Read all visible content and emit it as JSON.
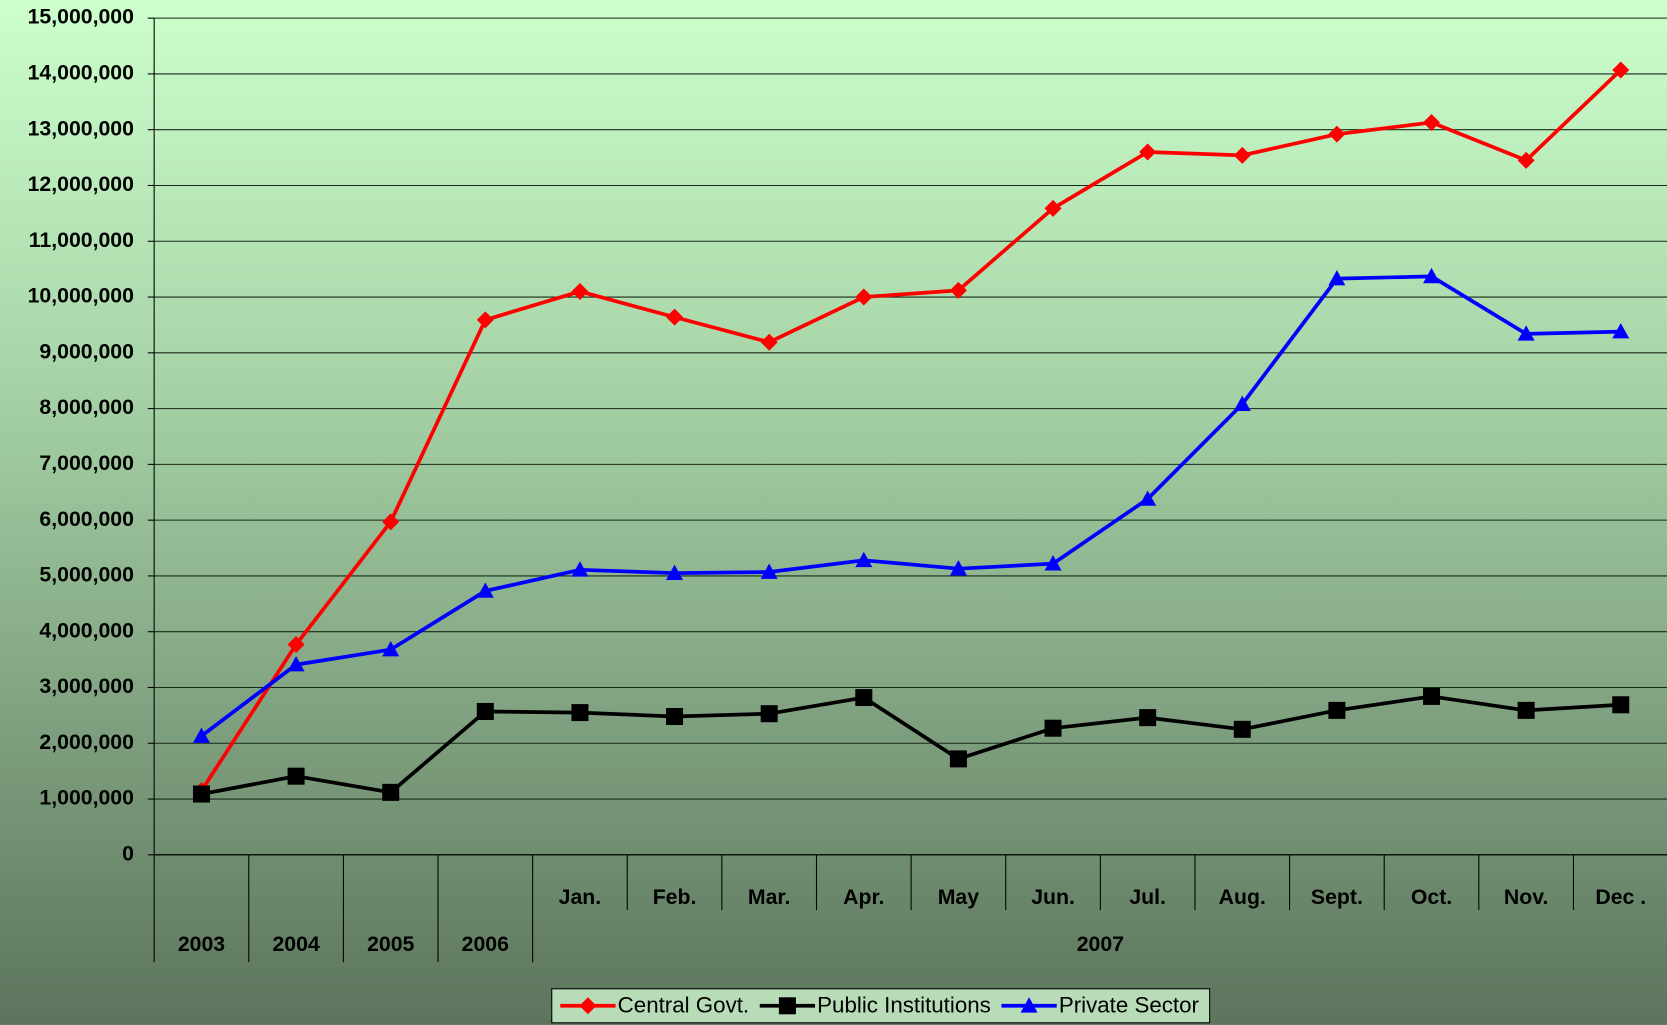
{
  "chart_data": {
    "type": "line",
    "categories": [
      "2003",
      "2004",
      "2005",
      "2006",
      "Jan.",
      "Feb.",
      "Mar.",
      "Apr.",
      "May",
      "Jun.",
      "Jul.",
      "Aug.",
      "Sept.",
      "Oct.",
      "Nov.",
      "Dec ."
    ],
    "category_groups": [
      {
        "label": "2007",
        "first": 4,
        "last": 15
      }
    ],
    "series": [
      {
        "name": "Central Govt.",
        "color": "#ff0000",
        "marker": "diamond",
        "values": [
          1150000,
          3770000,
          5970000,
          9590000,
          10100000,
          9640000,
          9190000,
          10000000,
          10120000,
          11590000,
          12600000,
          12540000,
          12920000,
          13130000,
          12450000,
          14070000
        ]
      },
      {
        "name": "Public Institutions",
        "color": "#000000",
        "marker": "square",
        "values": [
          1090000,
          1410000,
          1120000,
          2570000,
          2550000,
          2480000,
          2530000,
          2820000,
          1720000,
          2270000,
          2460000,
          2250000,
          2590000,
          2840000,
          2590000,
          2690000
        ]
      },
      {
        "name": "Private Sector",
        "color": "#0000ff",
        "marker": "triangle",
        "values": [
          2130000,
          3410000,
          3680000,
          4730000,
          5110000,
          5050000,
          5070000,
          5280000,
          5130000,
          5220000,
          6380000,
          8080000,
          10330000,
          10370000,
          9340000,
          9380000
        ]
      }
    ],
    "ylim": [
      0,
      15000000
    ],
    "yticks": [
      0,
      {
        "value": 1000000,
        "label": "1,000,000"
      },
      {
        "value": 2000000,
        "label": "2,000,000"
      },
      {
        "value": 3000000,
        "label": "3,000,000"
      },
      {
        "value": 4000000,
        "label": "4,000,000"
      },
      {
        "value": 5000000,
        "label": "5,000,000"
      },
      {
        "value": 6000000,
        "label": "6,000,000"
      },
      {
        "value": 7000000,
        "label": "7,000,000"
      },
      {
        "value": 8000000,
        "label": "8,000,000"
      },
      {
        "value": 9000000,
        "label": "9,000,000"
      },
      {
        "value": 10000000,
        "label": "10,000,000"
      },
      {
        "value": 11000000,
        "label": "11,000,000"
      },
      {
        "value": 12000000,
        "label": "12,000,000"
      },
      {
        "value": 13000000,
        "label": "13,000,000"
      },
      {
        "value": 14000000,
        "label": "14,000,000"
      },
      {
        "value": 15000000,
        "label": "15,000,000"
      }
    ],
    "grid": true,
    "legend": "bottom"
  }
}
